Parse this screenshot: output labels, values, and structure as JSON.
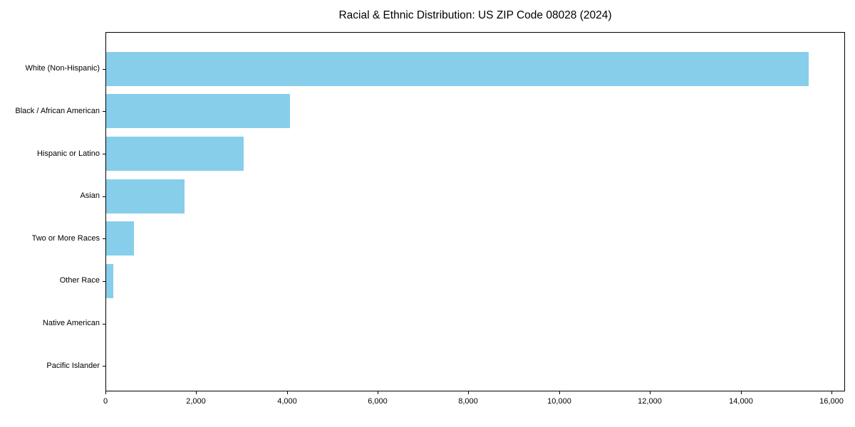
{
  "chart_data": {
    "type": "bar",
    "orientation": "horizontal",
    "title": "Racial & Ethnic Distribution: US ZIP Code 08028 (2024)",
    "categories": [
      "White (Non-Hispanic)",
      "Black / African American",
      "Hispanic or Latino",
      "Asian",
      "Two or More Races",
      "Other Race",
      "Native American",
      "Pacific Islander"
    ],
    "values": [
      15520,
      4060,
      3030,
      1730,
      610,
      150,
      0,
      0
    ],
    "bar_color": "#87CEEB",
    "xlabel": "",
    "ylabel": "",
    "xlim": [
      0,
      16300
    ],
    "x_ticks": [
      0,
      2000,
      4000,
      6000,
      8000,
      10000,
      12000,
      14000,
      16000
    ],
    "x_tick_labels": [
      "0",
      "2,000",
      "4,000",
      "6,000",
      "8,000",
      "10,000",
      "12,000",
      "14,000",
      "16,000"
    ],
    "grid": false,
    "legend": "none",
    "frame": "full-box"
  }
}
